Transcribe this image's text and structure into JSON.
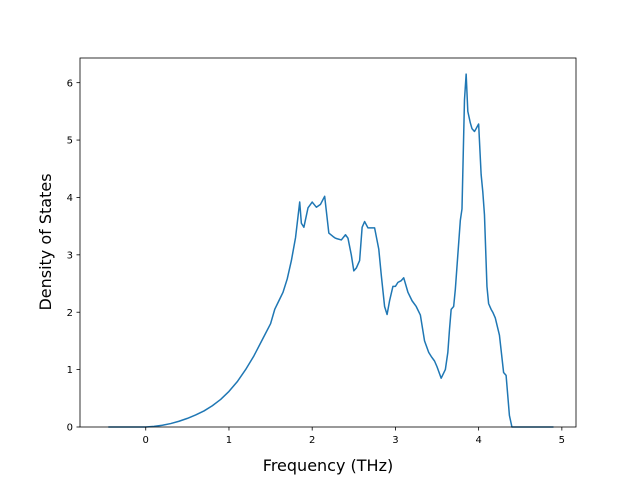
{
  "chart_data": {
    "type": "line",
    "title": "",
    "xlabel": "Frequency (THz)",
    "ylabel": "Density of States",
    "xlim": [
      -0.79,
      5.17
    ],
    "ylim": [
      0,
      6.43
    ],
    "x_ticks": [
      0,
      1,
      2,
      3,
      4,
      5
    ],
    "y_ticks": [
      0,
      1,
      2,
      3,
      4,
      5,
      6
    ],
    "grid": false,
    "legend": "none",
    "line_color": "#1f77b4",
    "series": [
      {
        "x": [
          -0.45,
          0.0,
          0.1,
          0.2,
          0.3,
          0.4,
          0.5,
          0.6,
          0.7,
          0.8,
          0.9,
          1.0,
          1.1,
          1.2,
          1.3,
          1.4,
          1.5,
          1.55,
          1.6,
          1.65,
          1.7,
          1.75,
          1.8,
          1.85,
          1.87,
          1.9,
          1.95,
          2.0,
          2.05,
          2.1,
          2.15,
          2.2,
          2.25,
          2.28,
          2.3,
          2.35,
          2.4,
          2.43,
          2.47,
          2.5,
          2.53,
          2.57,
          2.6,
          2.63,
          2.67,
          2.7,
          2.75,
          2.8,
          2.83,
          2.87,
          2.9,
          2.93,
          2.97,
          3.0,
          3.03,
          3.07,
          3.1,
          3.15,
          3.2,
          3.25,
          3.3,
          3.35,
          3.4,
          3.43,
          3.47,
          3.5,
          3.55,
          3.6,
          3.63,
          3.65,
          3.67,
          3.7,
          3.72,
          3.75,
          3.78,
          3.8,
          3.83,
          3.85,
          3.87,
          3.9,
          3.92,
          3.95,
          3.97,
          4.0,
          4.03,
          4.05,
          4.07,
          4.1,
          4.12,
          4.15,
          4.17,
          4.2,
          4.25,
          4.3,
          4.33,
          4.37,
          4.4,
          4.43,
          4.45,
          4.48,
          4.52,
          4.6,
          4.7,
          4.9
        ],
        "y": [
          0.0,
          0.0,
          0.01,
          0.03,
          0.06,
          0.1,
          0.15,
          0.21,
          0.28,
          0.37,
          0.48,
          0.62,
          0.79,
          1.0,
          1.24,
          1.52,
          1.8,
          2.05,
          2.2,
          2.35,
          2.58,
          2.9,
          3.3,
          3.92,
          3.55,
          3.48,
          3.82,
          3.92,
          3.83,
          3.88,
          4.02,
          3.38,
          3.32,
          3.29,
          3.28,
          3.26,
          3.35,
          3.29,
          3.0,
          2.72,
          2.77,
          2.9,
          3.48,
          3.58,
          3.47,
          3.47,
          3.47,
          3.1,
          2.65,
          2.1,
          1.96,
          2.2,
          2.45,
          2.45,
          2.52,
          2.55,
          2.6,
          2.35,
          2.2,
          2.1,
          1.95,
          1.5,
          1.3,
          1.23,
          1.15,
          1.05,
          0.85,
          1.0,
          1.3,
          1.7,
          2.05,
          2.1,
          2.4,
          3.0,
          3.6,
          3.8,
          5.7,
          6.15,
          5.5,
          5.3,
          5.2,
          5.15,
          5.2,
          5.28,
          4.4,
          4.1,
          3.7,
          2.45,
          2.15,
          2.05,
          2.0,
          1.9,
          1.6,
          0.95,
          0.9,
          0.2,
          0.0,
          0.0,
          0.0,
          0.0,
          0.0,
          0.0,
          0.0,
          0.0
        ]
      }
    ]
  }
}
